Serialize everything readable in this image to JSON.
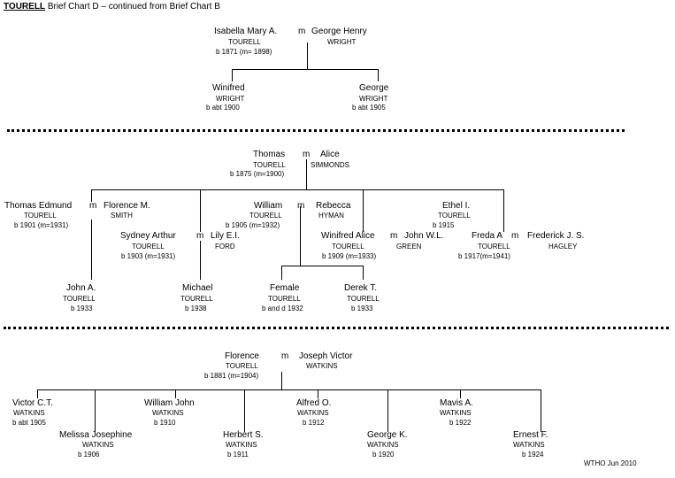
{
  "header": {
    "surname": "TOURELL",
    "subtitle": "Brief Chart D – continued from Brief Chart B"
  },
  "marriage_symbol": "m",
  "family1": {
    "p1_name": "Isabella Mary A.",
    "p1_surname": "TOURELL",
    "p1_detail": "b 1871 (m= 1898)",
    "p2_name": "George Henry",
    "p2_surname": "WRIGHT",
    "children": [
      {
        "name": "Winifred",
        "surname": "WRIGHT",
        "detail": "b abt 1900"
      },
      {
        "name": "George",
        "surname": "WRIGHT",
        "detail": "b abt 1905"
      }
    ]
  },
  "family2": {
    "p1_name": "Thomas",
    "p1_surname": "TOURELL",
    "p1_detail": "b 1875 (m=1900)",
    "p2_name": "Alice",
    "p2_surname": "SIMMONDS",
    "te_name": "Thomas Edmund",
    "te_surname": "TOURELL",
    "te_detail": "b 1901 (m=1931)",
    "fm_name": "Florence M.",
    "fm_surname": "SMITH",
    "sa_name": "Sydney Arthur",
    "sa_surname": "TOURELL",
    "sa_detail": "b 1903 (m=1931)",
    "le_name": "Lily E.I.",
    "le_surname": "FORD",
    "wm_name": "William",
    "wm_surname": "TOURELL",
    "wm_detail": "b 1905 (m=1932)",
    "rb_name": "Rebecca",
    "rb_surname": "HYMAN",
    "wa_name": "Winifred Alice",
    "wa_surname": "TOURELL",
    "wa_detail": "b 1909 (m=1933)",
    "jw_name": "John W.L.",
    "jw_surname": "GREEN",
    "ei_name": "Ethel I.",
    "ei_surname": "TOURELL",
    "ei_detail": "b 1915",
    "fa_name": "Freda A",
    "fa_surname": "TOURELL",
    "fa_detail": "b 1917(m=1941)",
    "fj_name": "Frederick J. S.",
    "fj_surname": "HAGLEY",
    "ja_name": "John A.",
    "ja_surname": "TOURELL",
    "ja_detail": "b 1933",
    "mi_name": "Michael",
    "mi_surname": "TOURELL",
    "mi_detail": "b 1938",
    "fe_name": "Female",
    "fe_surname": "TOURELL",
    "fe_detail": "b and d 1932",
    "dt_name": "Derek T.",
    "dt_surname": "TOURELL",
    "dt_detail": "b 1933"
  },
  "family3": {
    "p1_name": "Florence",
    "p1_surname": "TOURELL",
    "p1_detail": "b 1881 (m=1904)",
    "p2_name": "Joseph Victor",
    "p2_surname": "WATKINS",
    "children": [
      {
        "name": "Victor C.T.",
        "surname": "WATKINS",
        "detail": "b abt 1905"
      },
      {
        "name": "Melissa Josephine",
        "surname": "WATKINS",
        "detail": "b 1906"
      },
      {
        "name": "William John",
        "surname": "WATKINS",
        "detail": "b 1910"
      },
      {
        "name": "Herbert S.",
        "surname": "WATKINS",
        "detail": "b 1911"
      },
      {
        "name": "Alfred O.",
        "surname": "WATKINS",
        "detail": "b 1912"
      },
      {
        "name": "George K.",
        "surname": "WATKINS",
        "detail": "b 1920"
      },
      {
        "name": "Mavis A.",
        "surname": "WATKINS",
        "detail": "b 1922"
      },
      {
        "name": "Ernest F.",
        "surname": "WATKINS",
        "detail": "b 1924"
      }
    ]
  },
  "footer": {
    "credit": "WTHO Jun 2010"
  }
}
